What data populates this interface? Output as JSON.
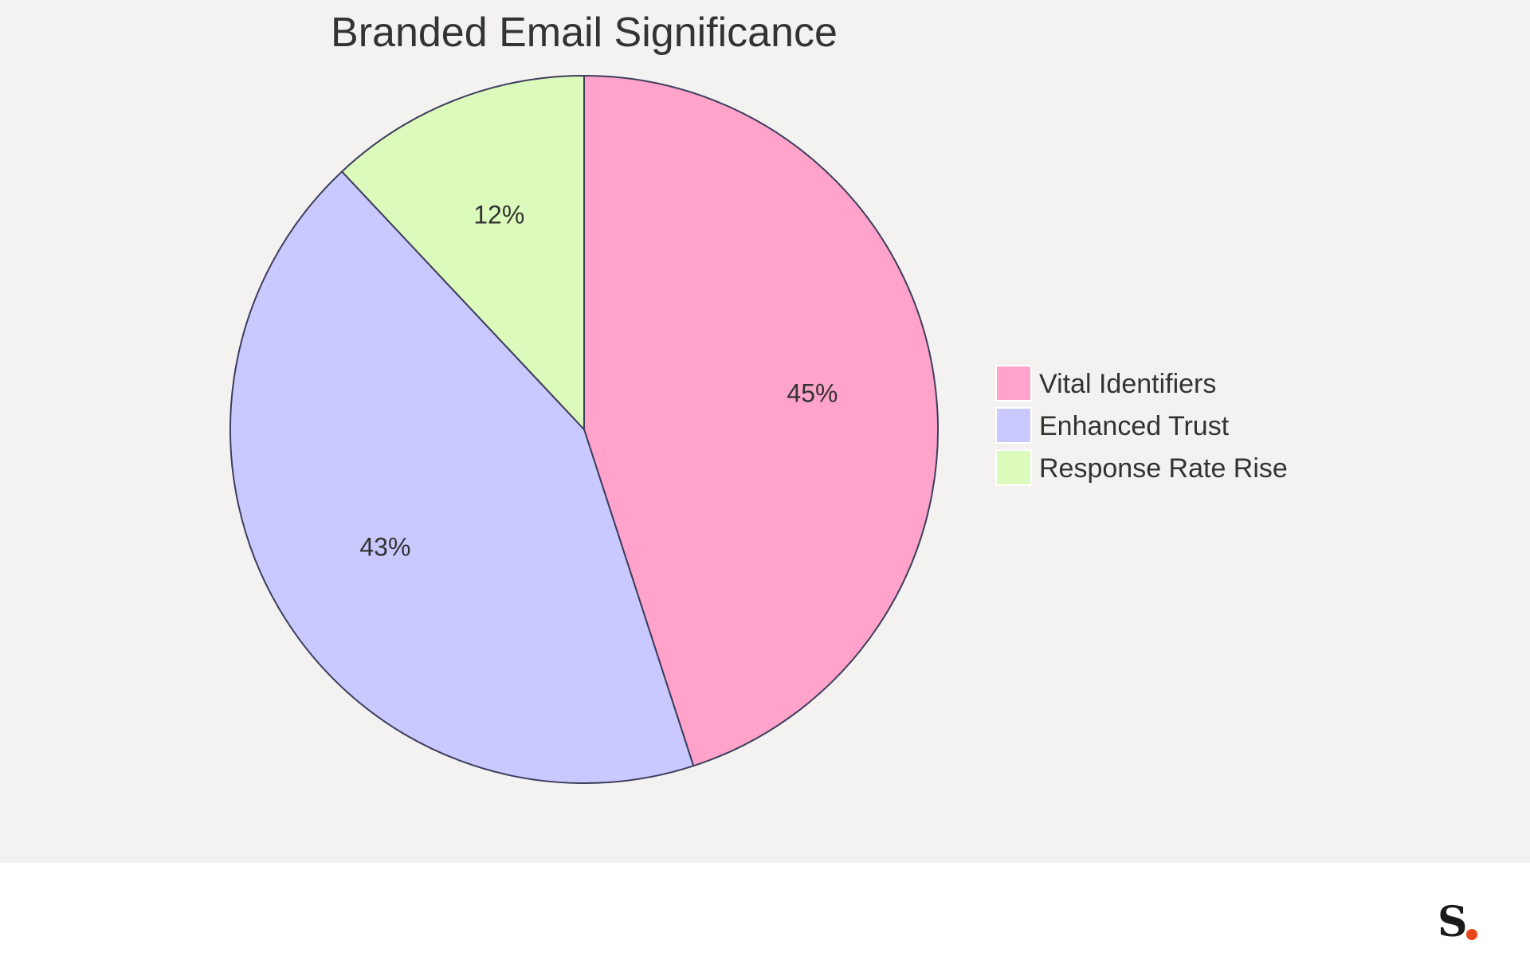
{
  "chart_data": {
    "type": "pie",
    "title": "Branded Email Significance",
    "slices": [
      {
        "label": "Vital Identifiers",
        "value": 45,
        "display": "45%",
        "color": "#ffa3cb"
      },
      {
        "label": "Enhanced Trust",
        "value": 43,
        "display": "43%",
        "color": "#c9c9ff"
      },
      {
        "label": "Response Rate Rise",
        "value": 12,
        "display": "12%",
        "color": "#dcfabb"
      }
    ],
    "legend_position": "right",
    "stroke_color": "#3d3d5c"
  },
  "brand": {
    "logo_letter": "S",
    "accent_color": "#e8471c"
  }
}
